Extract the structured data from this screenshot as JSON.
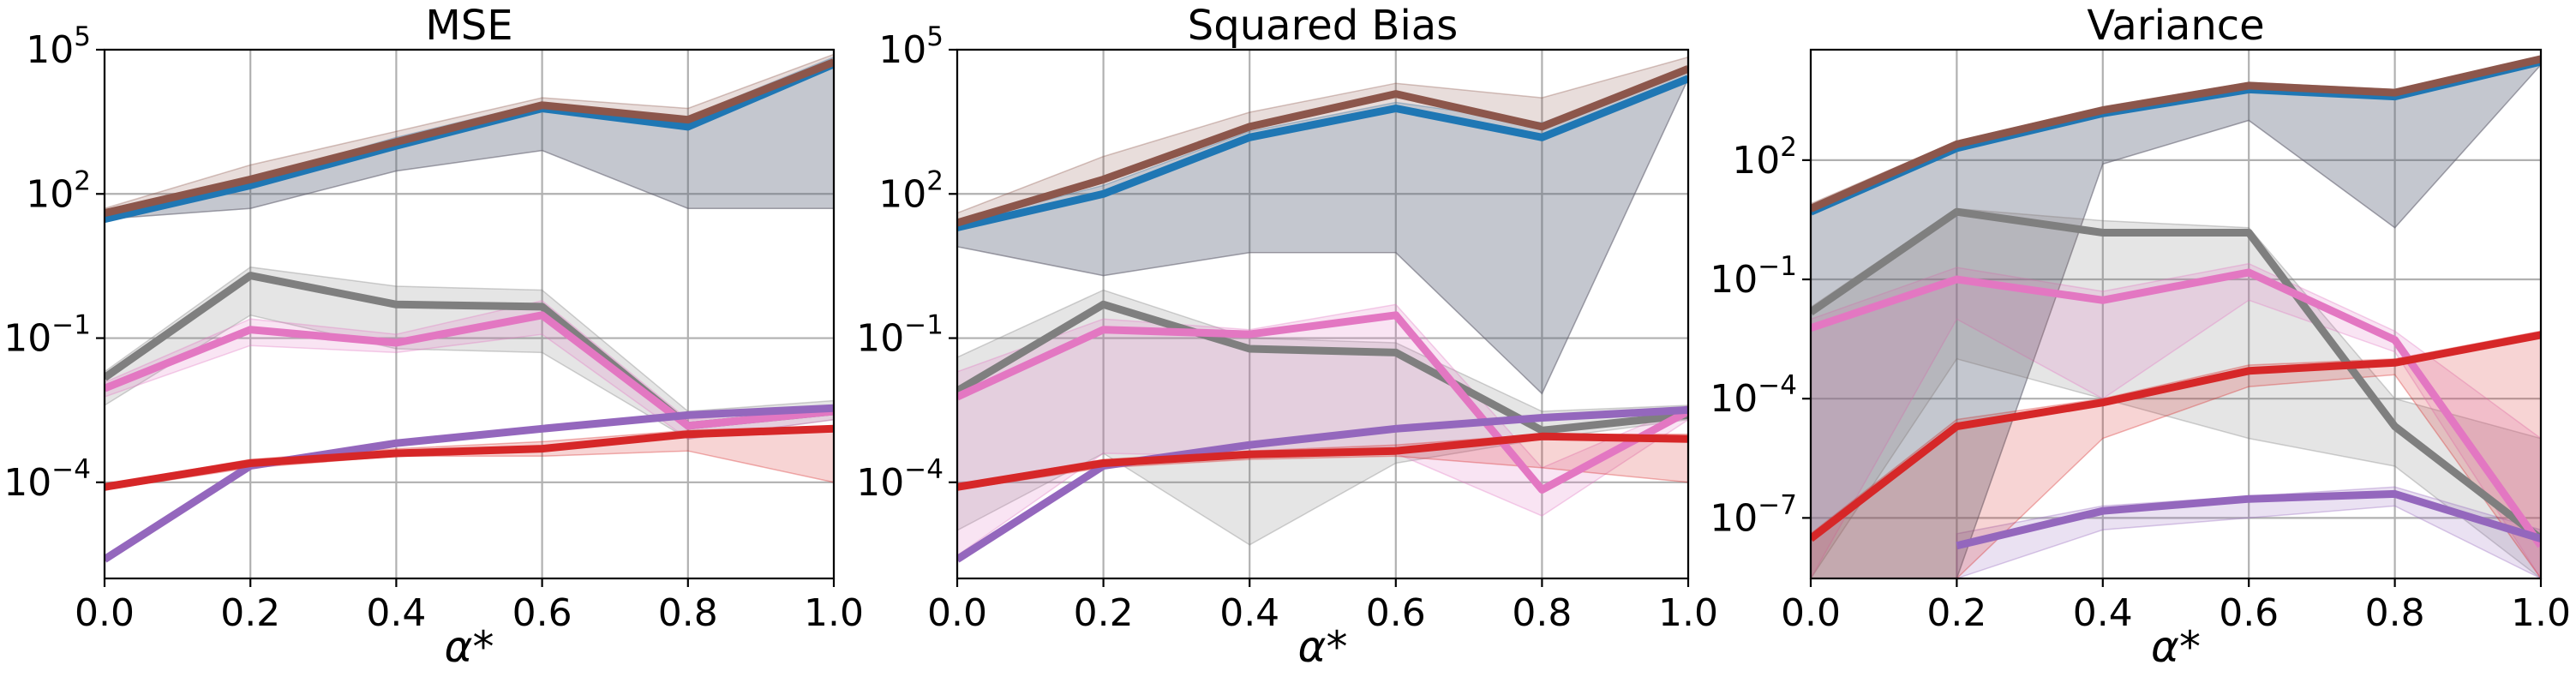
{
  "chart_data": [
    {
      "type": "line",
      "title": "MSE",
      "xlabel": "α*",
      "ylabel": "",
      "yscale": "log",
      "xlim": [
        0,
        1
      ],
      "ylim": [
        1e-06,
        100000.0
      ],
      "x": [
        0,
        0.2,
        0.4,
        0.6,
        0.8,
        1.0
      ],
      "xticks": [
        0,
        0.2,
        0.4,
        0.6,
        0.8,
        1.0
      ],
      "xtick_labels": [
        "0.0",
        "0.2",
        "0.4",
        "0.6",
        "0.8",
        "1.0"
      ],
      "yticks": [
        0.0001,
        0.1,
        100.0,
        100000.0
      ],
      "ytick_labels": [
        {
          "base": "10",
          "exp": "−4"
        },
        {
          "base": "10",
          "exp": "−1"
        },
        {
          "base": "10",
          "exp": "2"
        },
        {
          "base": "10",
          "exp": "5"
        }
      ],
      "grid": true,
      "series": [
        {
          "color": "#1f77b4",
          "values": [
            30,
            150,
            1000,
            6000,
            2500,
            50000
          ],
          "lower": [
            30,
            50,
            300,
            800,
            50,
            50
          ],
          "upper": [
            40,
            200,
            1500,
            8000,
            4000,
            70000
          ]
        },
        {
          "color": "#7f7f7f",
          "values": [
            0.015,
            2.0,
            0.5,
            0.45,
            0.0015,
            0.003
          ],
          "lower": [
            0.004,
            0.3,
            0.06,
            0.05,
            0.0008,
            0.002
          ],
          "upper": [
            0.02,
            3,
            1.2,
            1.0,
            0.003,
            0.005
          ]
        },
        {
          "color": "#e377c2",
          "values": [
            0.009,
            0.15,
            0.08,
            0.3,
            0.0015,
            0.003
          ],
          "lower": [
            0.006,
            0.07,
            0.05,
            0.12,
            0.0008,
            0.002
          ],
          "upper": [
            0.012,
            0.25,
            0.12,
            0.6,
            0.002,
            0.004
          ]
        },
        {
          "color": "#9467bd",
          "values": [
            2.5e-06,
            0.00022,
            0.00065,
            0.0013,
            0.0025,
            0.0035
          ],
          "lower": [
            2.3e-06,
            0.0002,
            0.0006,
            0.0012,
            0.0022,
            0.003
          ],
          "upper": [
            2.7e-06,
            0.00024,
            0.0007,
            0.0014,
            0.0028,
            0.004
          ]
        },
        {
          "color": "#d62728",
          "values": [
            8e-05,
            0.00025,
            0.0004,
            0.0005,
            0.001,
            0.0013
          ],
          "lower": [
            7e-05,
            0.0002,
            0.00035,
            0.00035,
            0.00045,
            0.0001
          ],
          "upper": [
            9e-05,
            0.0003,
            0.0005,
            0.0007,
            0.0012,
            0.0015
          ]
        },
        {
          "color": "#8c564b",
          "values": [
            40,
            200,
            1200,
            7000,
            3500,
            55000
          ],
          "lower": [
            30,
            50,
            300,
            800,
            50,
            50
          ],
          "upper": [
            50,
            400,
            2000,
            10000,
            6000,
            80000
          ]
        }
      ]
    },
    {
      "type": "line",
      "title": "Squared Bias",
      "xlabel": "α*",
      "ylabel": "",
      "yscale": "log",
      "xlim": [
        0,
        1
      ],
      "ylim": [
        1e-06,
        100000.0
      ],
      "x": [
        0,
        0.2,
        0.4,
        0.6,
        0.8,
        1.0
      ],
      "xticks": [
        0,
        0.2,
        0.4,
        0.6,
        0.8,
        1.0
      ],
      "xtick_labels": [
        "0.0",
        "0.2",
        "0.4",
        "0.6",
        "0.8",
        "1.0"
      ],
      "yticks": [
        0.0001,
        0.1,
        100.0,
        100000.0
      ],
      "ytick_labels": [
        {
          "base": "10",
          "exp": "−4"
        },
        {
          "base": "10",
          "exp": "−1"
        },
        {
          "base": "10",
          "exp": "2"
        },
        {
          "base": "10",
          "exp": "5"
        }
      ],
      "grid": true,
      "series": [
        {
          "color": "#1f77b4",
          "values": [
            20,
            100,
            1500,
            6000,
            1500,
            25000
          ],
          "lower": [
            8,
            2,
            6,
            6,
            0.007,
            25000
          ],
          "upper": [
            25,
            150,
            2000,
            8000,
            3000,
            40000
          ]
        },
        {
          "color": "#7f7f7f",
          "values": [
            0.008,
            0.5,
            0.06,
            0.05,
            0.0012,
            0.0025
          ],
          "lower": [
            1e-05,
            0.0004,
            5e-06,
            0.00025,
            0.0008,
            0.002
          ],
          "upper": [
            0.04,
            1.0,
            0.1,
            0.08,
            0.003,
            0.004
          ]
        },
        {
          "color": "#e377c2",
          "values": [
            0.006,
            0.15,
            0.12,
            0.3,
            7e-05,
            0.003
          ],
          "lower": [
            3e-06,
            0.0004,
            0.00035,
            0.0004,
            2e-05,
            0.002
          ],
          "upper": [
            0.02,
            0.25,
            0.15,
            0.5,
            0.0002,
            0.004
          ]
        },
        {
          "color": "#9467bd",
          "values": [
            2.5e-06,
            0.00022,
            0.0006,
            0.0013,
            0.0022,
            0.0032
          ],
          "lower": [
            2.3e-06,
            0.0002,
            0.00055,
            0.0012,
            0.002,
            0.003
          ],
          "upper": [
            2.7e-06,
            0.00024,
            0.00065,
            0.0014,
            0.0024,
            0.0035
          ]
        },
        {
          "color": "#d62728",
          "values": [
            8e-05,
            0.00025,
            0.00038,
            0.00045,
            0.0009,
            0.0008
          ],
          "lower": [
            7e-05,
            0.0002,
            0.0003,
            0.00035,
            0.0002,
            0.0001
          ],
          "upper": [
            9e-05,
            0.0003,
            0.00045,
            0.0006,
            0.001,
            0.001
          ]
        },
        {
          "color": "#8c564b",
          "values": [
            25,
            200,
            2500,
            12000,
            2500,
            40000
          ],
          "lower": [
            8,
            2,
            6,
            6,
            0.007,
            25000
          ],
          "upper": [
            40,
            600,
            5000,
            20000,
            10000,
            70000
          ]
        }
      ]
    },
    {
      "type": "line",
      "title": "Variance",
      "xlabel": "α*",
      "ylabel": "",
      "yscale": "log",
      "xlim": [
        0,
        1
      ],
      "ylim": [
        3e-09,
        60000.0
      ],
      "x": [
        0,
        0.2,
        0.4,
        0.6,
        0.8,
        1.0
      ],
      "xticks": [
        0,
        0.2,
        0.4,
        0.6,
        0.8,
        1.0
      ],
      "xtick_labels": [
        "0.0",
        "0.2",
        "0.4",
        "0.6",
        "0.8",
        "1.0"
      ],
      "yticks": [
        1e-07,
        0.0001,
        0.1,
        100.0
      ],
      "ytick_labels": [
        {
          "base": "10",
          "exp": "−7"
        },
        {
          "base": "10",
          "exp": "−4"
        },
        {
          "base": "10",
          "exp": "−1"
        },
        {
          "base": "10",
          "exp": "2"
        }
      ],
      "grid": true,
      "series": [
        {
          "color": "#1f77b4",
          "values": [
            5,
            200,
            1500,
            6000,
            4000,
            30000
          ],
          "lower": [
            3e-09,
            3e-09,
            80,
            1000,
            2,
            25000
          ],
          "upper": [
            6,
            250,
            1800,
            7000,
            5000,
            35000
          ]
        },
        {
          "color": "#7f7f7f",
          "values": [
            0.015,
            5,
            1.5,
            1.5,
            2e-05,
            3e-08
          ],
          "lower": [
            3e-09,
            0.001,
            0.0001,
            1e-05,
            2e-06,
            3e-09
          ],
          "upper": [
            0.02,
            6,
            3,
            2,
            0.0001,
            1e-05
          ]
        },
        {
          "color": "#e377c2",
          "values": [
            0.006,
            0.1,
            0.03,
            0.15,
            0.003,
            2e-08
          ],
          "lower": [
            3e-09,
            0.01,
            0.0001,
            0.03,
            0.0015,
            3e-09
          ],
          "upper": [
            0.01,
            0.2,
            0.05,
            0.25,
            0.005,
            1e-05
          ]
        },
        {
          "color": "#9467bd",
          "values": [
            null,
            2e-08,
            1.5e-07,
            3e-07,
            4e-07,
            3e-08
          ],
          "lower": [
            null,
            3e-09,
            5e-08,
            1e-07,
            2e-07,
            3e-09
          ],
          "upper": [
            null,
            4e-08,
            2e-07,
            3.5e-07,
            6e-07,
            5e-08
          ]
        },
        {
          "color": "#d62728",
          "values": [
            3e-08,
            2e-05,
            8e-05,
            0.0005,
            0.0008,
            0.004
          ],
          "lower": [
            3e-09,
            3e-09,
            1e-05,
            0.0002,
            0.0004,
            3e-09
          ],
          "upper": [
            4e-08,
            3e-05,
            0.0001,
            0.0007,
            0.001,
            0.005
          ]
        },
        {
          "color": "#8c564b",
          "values": [
            6,
            250,
            1800,
            7500,
            5000,
            35000
          ],
          "lower": [
            3e-09,
            3e-09,
            80,
            1000,
            2,
            25000
          ],
          "upper": [
            8,
            300,
            2200,
            9000,
            6000,
            40000
          ]
        }
      ]
    }
  ]
}
